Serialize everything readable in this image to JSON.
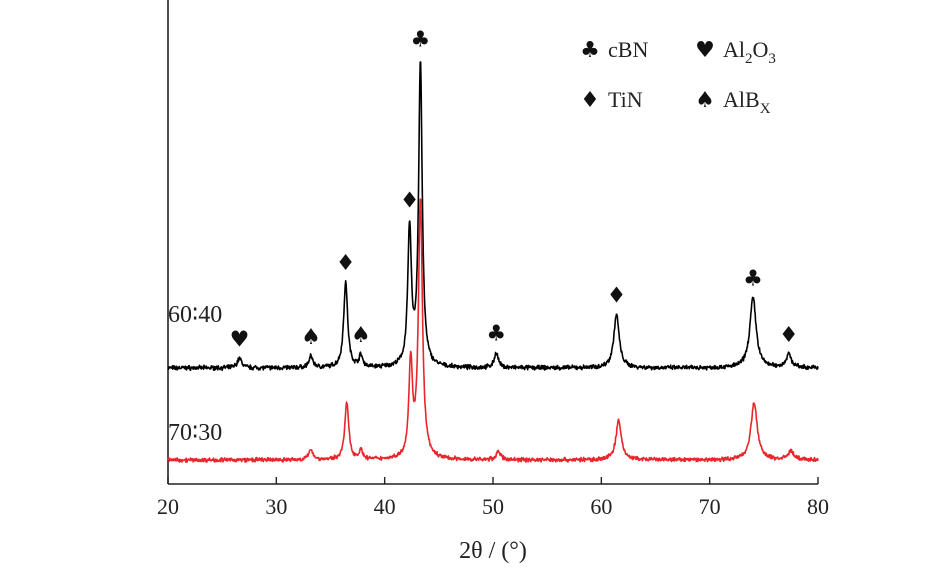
{
  "chart_data": {
    "type": "line",
    "xlabel": "2θ / (°)",
    "ylabel": "",
    "xlim": [
      20,
      80
    ],
    "xticks": [
      20,
      30,
      40,
      50,
      60,
      70,
      80
    ],
    "grid": false,
    "series": [
      {
        "name": "60∶40",
        "color": "#000000",
        "baseline": 0.0,
        "peaks": [
          {
            "x": 26.6,
            "h": 0.05,
            "w": 0.25
          },
          {
            "x": 33.2,
            "h": 0.06,
            "w": 0.22
          },
          {
            "x": 36.4,
            "h": 0.45,
            "w": 0.22
          },
          {
            "x": 37.8,
            "h": 0.06,
            "w": 0.2
          },
          {
            "x": 42.3,
            "h": 0.72,
            "w": 0.2
          },
          {
            "x": 43.3,
            "h": 1.6,
            "w": 0.2
          },
          {
            "x": 50.3,
            "h": 0.08,
            "w": 0.22
          },
          {
            "x": 61.4,
            "h": 0.28,
            "w": 0.3
          },
          {
            "x": 74.0,
            "h": 0.37,
            "w": 0.35
          },
          {
            "x": 77.3,
            "h": 0.07,
            "w": 0.3
          }
        ]
      },
      {
        "name": "70∶30",
        "color": "#e8262b",
        "baseline": 0.0,
        "peaks": [
          {
            "x": 33.2,
            "h": 0.06,
            "w": 0.22
          },
          {
            "x": 36.5,
            "h": 0.32,
            "w": 0.22
          },
          {
            "x": 37.8,
            "h": 0.05,
            "w": 0.2
          },
          {
            "x": 42.4,
            "h": 0.53,
            "w": 0.2
          },
          {
            "x": 43.3,
            "h": 1.45,
            "w": 0.22
          },
          {
            "x": 50.5,
            "h": 0.05,
            "w": 0.22
          },
          {
            "x": 61.6,
            "h": 0.22,
            "w": 0.3
          },
          {
            "x": 74.1,
            "h": 0.32,
            "w": 0.35
          },
          {
            "x": 77.5,
            "h": 0.05,
            "w": 0.3
          }
        ]
      }
    ],
    "phase_markers": [
      {
        "symbol": "♥",
        "x": 26.6,
        "phase": "Al2O3"
      },
      {
        "symbol": "♠",
        "x": 33.2,
        "phase": "AlBx"
      },
      {
        "symbol": "♦",
        "x": 36.4,
        "phase": "TiN"
      },
      {
        "symbol": "♠",
        "x": 37.8,
        "phase": "AlBx"
      },
      {
        "symbol": "♦",
        "x": 42.3,
        "phase": "TiN"
      },
      {
        "symbol": "♣",
        "x": 43.3,
        "phase": "cBN"
      },
      {
        "symbol": "♣",
        "x": 50.3,
        "phase": "cBN"
      },
      {
        "symbol": "♦",
        "x": 61.4,
        "phase": "TiN"
      },
      {
        "symbol": "♣",
        "x": 74.0,
        "phase": "cBN"
      },
      {
        "symbol": "♦",
        "x": 77.3,
        "phase": "TiN"
      }
    ],
    "legend": {
      "position": "top-right",
      "entries": [
        {
          "symbol": "♣",
          "label": "cBN",
          "sub": "",
          "tail": ""
        },
        {
          "symbol": "♥",
          "label": "Al",
          "sub": "2",
          "tail": "O",
          "sub2": "3"
        },
        {
          "symbol": "♦",
          "label": "TiN",
          "sub": "",
          "tail": ""
        },
        {
          "symbol": "♠",
          "label": "AlB",
          "sub": "X",
          "tail": ""
        }
      ]
    }
  }
}
